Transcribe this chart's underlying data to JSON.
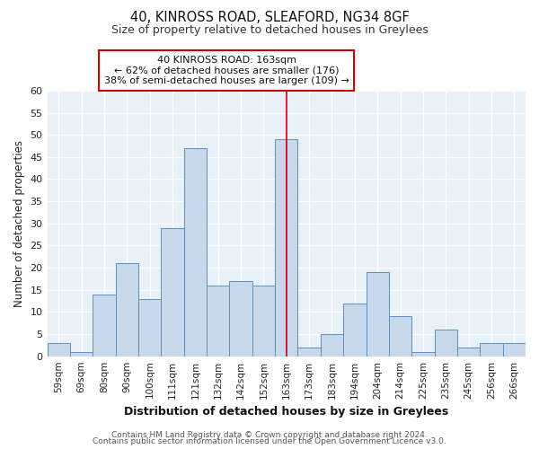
{
  "title": "40, KINROSS ROAD, SLEAFORD, NG34 8GF",
  "subtitle": "Size of property relative to detached houses in Greylees",
  "xlabel": "Distribution of detached houses by size in Greylees",
  "ylabel": "Number of detached properties",
  "bin_labels": [
    "59sqm",
    "69sqm",
    "80sqm",
    "90sqm",
    "100sqm",
    "111sqm",
    "121sqm",
    "132sqm",
    "142sqm",
    "152sqm",
    "163sqm",
    "173sqm",
    "183sqm",
    "194sqm",
    "204sqm",
    "214sqm",
    "225sqm",
    "235sqm",
    "245sqm",
    "256sqm",
    "266sqm"
  ],
  "bin_values": [
    3,
    1,
    14,
    21,
    13,
    29,
    47,
    16,
    17,
    16,
    49,
    2,
    5,
    12,
    19,
    9,
    1,
    6,
    2,
    3,
    3
  ],
  "highlight_bin_index": 10,
  "bar_color": "#c8d8eb",
  "bar_edge_color": "#6090c0",
  "highlight_line_color": "#cc0000",
  "annotation_box_text": "40 KINROSS ROAD: 163sqm\n← 62% of detached houses are smaller (176)\n38% of semi-detached houses are larger (109) →",
  "annotation_box_color": "#ffffff",
  "annotation_box_edge_color": "#cc0000",
  "ylim": [
    0,
    60
  ],
  "yticks": [
    0,
    5,
    10,
    15,
    20,
    25,
    30,
    35,
    40,
    45,
    50,
    55,
    60
  ],
  "fig_background_color": "#ffffff",
  "plot_background_color": "#e8f0f8",
  "grid_color": "#ffffff",
  "footer_line1": "Contains HM Land Registry data © Crown copyright and database right 2024.",
  "footer_line2": "Contains public sector information licensed under the Open Government Licence v3.0."
}
